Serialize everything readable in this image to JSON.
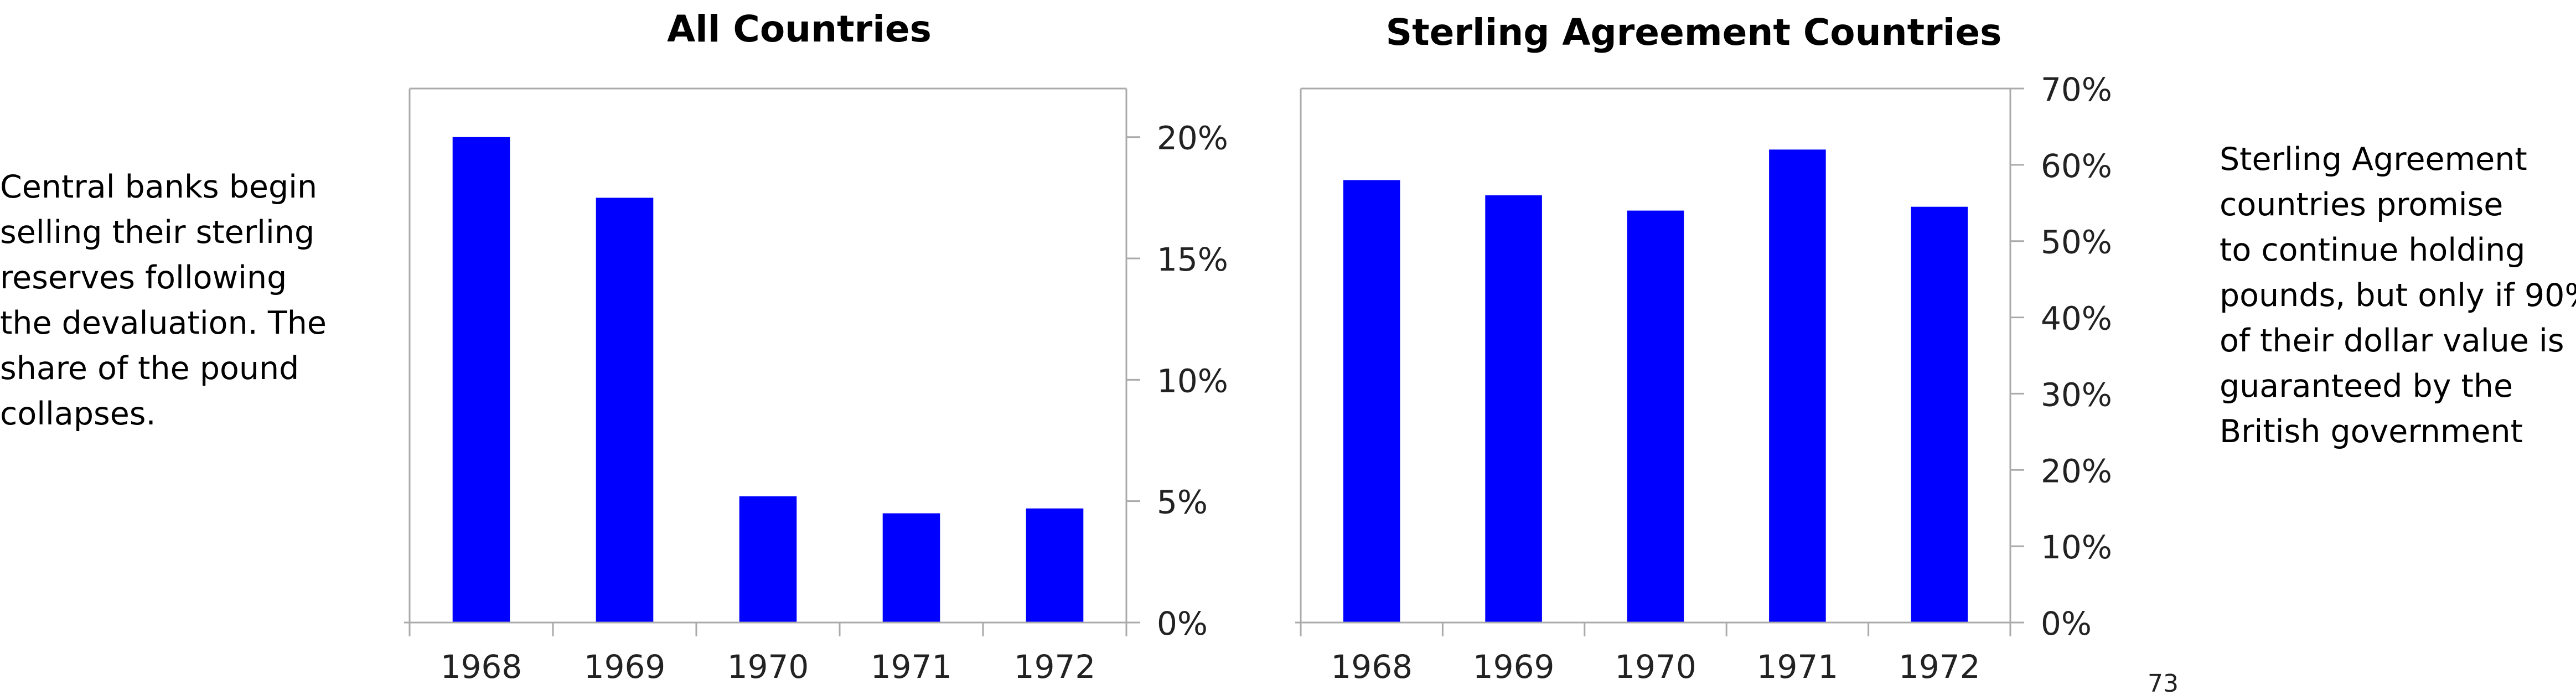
{
  "left_note": {
    "lines": [
      "Central banks begin",
      "selling their sterling",
      "reserves following",
      "the devaluation. The",
      "share of the pound",
      "collapses."
    ]
  },
  "right_note": {
    "lines": [
      "Sterling Agreement",
      "countries promise",
      "to continue holding",
      "pounds, but only if 90%",
      "of their dollar value is",
      "guaranteed by the",
      "British government"
    ]
  },
  "page_number": "73",
  "colors": {
    "bar": "#0000ff",
    "axis": "#aaaaaa"
  },
  "chart_data": [
    {
      "type": "bar",
      "title": "All Countries",
      "categories": [
        "1968",
        "1969",
        "1970",
        "1971",
        "1972"
      ],
      "values": [
        20.0,
        17.5,
        5.2,
        4.5,
        4.7
      ],
      "ylim": [
        0,
        22
      ],
      "yticks": [
        0,
        5,
        10,
        15,
        20
      ],
      "ytick_labels": [
        "0%",
        "5%",
        "10%",
        "15%",
        "20%"
      ],
      "y_axis_side": "right",
      "grid": false,
      "xlabel": "",
      "ylabel": ""
    },
    {
      "type": "bar",
      "title": "Sterling Agreement Countries",
      "categories": [
        "1968",
        "1969",
        "1970",
        "1971",
        "1972"
      ],
      "values": [
        58,
        56,
        54,
        62,
        54.5
      ],
      "ylim": [
        0,
        70
      ],
      "yticks": [
        0,
        10,
        20,
        30,
        40,
        50,
        60,
        70
      ],
      "ytick_labels": [
        "0%",
        "10%",
        "20%",
        "30%",
        "40%",
        "50%",
        "60%",
        "70%"
      ],
      "y_axis_side": "right",
      "grid": false,
      "xlabel": "",
      "ylabel": ""
    }
  ]
}
